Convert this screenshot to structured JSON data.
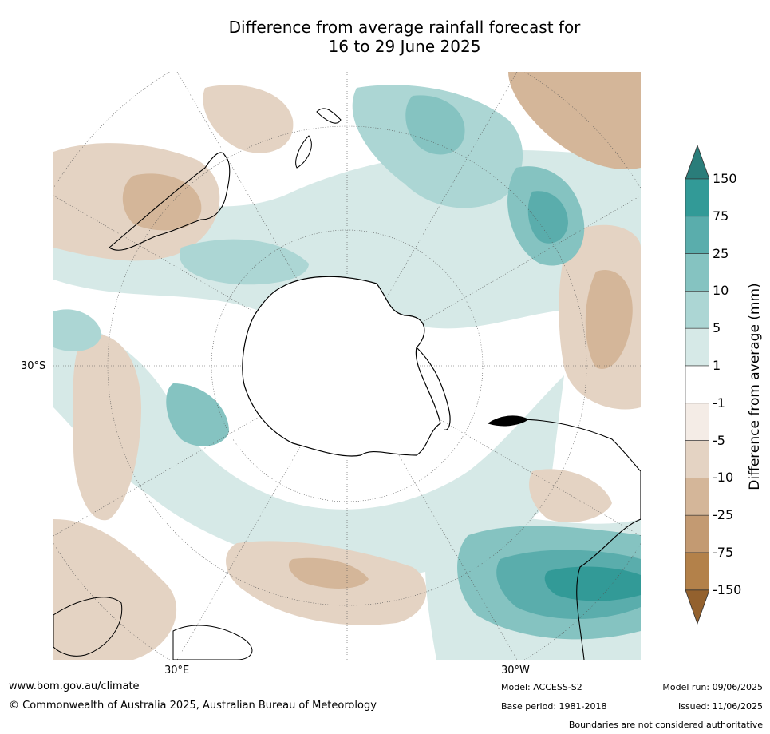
{
  "title": {
    "line1": "Difference from average rainfall forecast for",
    "line2": "16 to 29 June 2025"
  },
  "map": {
    "labels": {
      "lat_left": "30°S",
      "lon_bottom_left": "30°E",
      "lon_bottom_right": "30°W"
    }
  },
  "legend": {
    "label": "Difference from average (mm)",
    "levels": [
      {
        "value": "150",
        "color": "#2a7d7a"
      },
      {
        "value": "75",
        "color": "#329a97"
      },
      {
        "value": "25",
        "color": "#5aadac"
      },
      {
        "value": "10",
        "color": "#85c3c1"
      },
      {
        "value": "5",
        "color": "#acd6d4"
      },
      {
        "value": "1",
        "color": "#d6e9e7"
      },
      {
        "value": "-1",
        "color": "#ffffff"
      },
      {
        "value": "-5",
        "color": "#f4ece6"
      },
      {
        "value": "-10",
        "color": "#e4d3c3"
      },
      {
        "value": "-25",
        "color": "#d4b699"
      },
      {
        "value": "-75",
        "color": "#c39a72"
      },
      {
        "value": "-150",
        "color": "#b3814a"
      }
    ],
    "extend_low_color": "#93612e",
    "extend_high_color": "#2a7d7a"
  },
  "footer": {
    "website": "www.bom.gov.au/climate",
    "copyright": "© Commonwealth of Australia 2025, Australian Bureau of Meteorology",
    "model": "Model: ACCESS-S2",
    "base_period": "Base period: 1981-2018",
    "model_run": "Model run: 09/06/2025",
    "issued": "Issued: 11/06/2025",
    "disclaimer": "Boundaries are not considered authoritative"
  }
}
